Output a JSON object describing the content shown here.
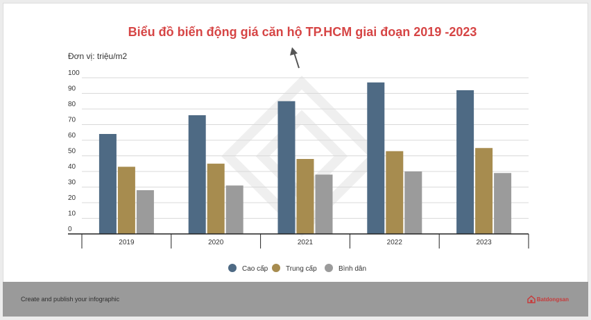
{
  "chart_data": {
    "type": "bar",
    "title": "Biểu đồ biến động giá căn hộ TP.HCM giai đoạn 2019 -2023",
    "unit_label": "Đơn vị: triệu/m2",
    "categories": [
      "2019",
      "2020",
      "2021",
      "2022",
      "2023"
    ],
    "series": [
      {
        "name": "Cao cấp",
        "color": "#4e6a84",
        "values": [
          64,
          76,
          85,
          97,
          92
        ]
      },
      {
        "name": "Trung cấp",
        "color": "#a78c4f",
        "values": [
          43,
          45,
          48,
          53,
          55
        ]
      },
      {
        "name": "Bình dân",
        "color": "#9b9b9b",
        "values": [
          28,
          31,
          38,
          40,
          39
        ]
      }
    ],
    "ylim": [
      0,
      100
    ],
    "yticks": [
      0,
      10,
      20,
      30,
      40,
      50,
      60,
      70,
      80,
      90,
      100
    ],
    "grid": true,
    "legend_position": "bottom"
  },
  "footer": {
    "text": "Create and publish your infographic",
    "brand": "Batdongsan",
    "brand_icon": "house-logo-icon"
  },
  "overlay": {
    "cursor_icon": "arrow-cursor-icon"
  }
}
